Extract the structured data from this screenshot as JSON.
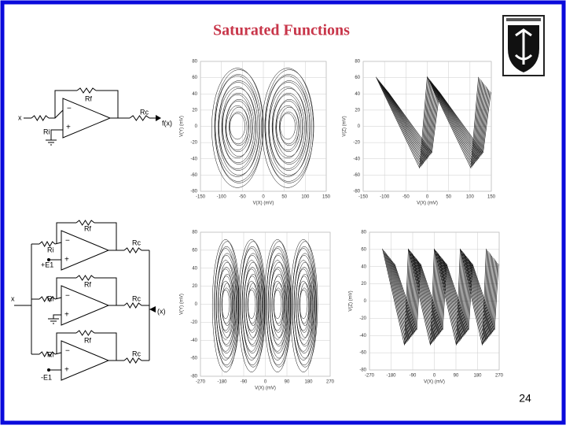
{
  "header": {
    "title": "Saturated Functions"
  },
  "footer": {
    "page_number": "24"
  },
  "circuits": [
    {
      "labels": [
        "x",
        "Rf",
        "Ri",
        "Rc",
        "f(x)"
      ]
    },
    {
      "labels": [
        "Rf",
        "Ri",
        "+E1",
        "Rc",
        "Rf",
        "x",
        "Ri",
        "Rc",
        "(x)",
        "Rf",
        "Ri",
        "Rc",
        "-E1"
      ]
    }
  ],
  "plots": [
    {
      "y_label": "V(Y) (mV)",
      "x_label": "V(X) (mV)",
      "yticks": [
        80,
        60,
        40,
        20,
        0,
        -20,
        -40,
        -60,
        -80
      ],
      "xticks": [
        -150,
        -100,
        -50,
        0,
        50,
        100,
        150
      ]
    },
    {
      "y_label": "V(Z) (mV)",
      "x_label": "V(X) (mV)",
      "yticks": [
        80,
        60,
        40,
        20,
        0,
        -20,
        -40,
        -60,
        -80
      ],
      "xticks": [
        -150,
        -100,
        -50,
        0,
        50,
        100,
        150
      ]
    },
    {
      "y_label": "V(Y) (mV)",
      "x_label": "V(X) (mV)",
      "yticks": [
        80,
        60,
        40,
        20,
        0,
        -20,
        -40,
        -60,
        -80
      ],
      "xticks": [
        -270,
        -180,
        -90,
        0,
        90,
        180,
        270
      ]
    },
    {
      "y_label": "V(Z) (mV)",
      "x_label": "V(X) (mV)",
      "yticks": [
        80,
        60,
        40,
        20,
        0,
        -20,
        -40,
        -60,
        -80
      ],
      "xticks": [
        -270,
        -180,
        -90,
        0,
        90,
        180,
        270
      ]
    }
  ]
}
